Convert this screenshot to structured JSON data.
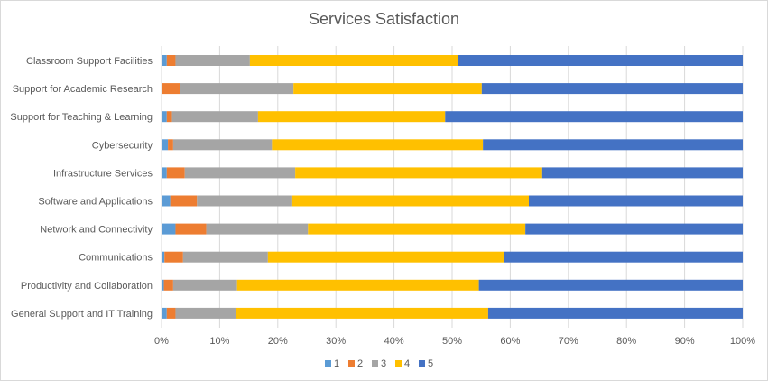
{
  "chart_data": {
    "type": "bar",
    "orientation": "horizontal",
    "stacked": "100%",
    "title": "Services Satisfaction",
    "categories": [
      "Classroom Support Facilities",
      "Support for Academic Research",
      "Support for Teaching & Learning",
      "Cybersecurity",
      "Infrastructure Services",
      "Software and Applications",
      "Network and Connectivity",
      "Communications",
      "Productivity and Collaboration",
      "General Support and IT Training"
    ],
    "series": [
      {
        "name": "1",
        "color": "#5b9bd5",
        "values": [
          0.9,
          0.0,
          0.9,
          1.1,
          0.9,
          1.5,
          2.4,
          0.5,
          0.4,
          0.9
        ]
      },
      {
        "name": "2",
        "color": "#ed7d31",
        "values": [
          1.5,
          3.2,
          0.9,
          0.9,
          3.1,
          4.6,
          5.3,
          3.2,
          1.6,
          1.5
        ]
      },
      {
        "name": "3",
        "color": "#a5a5a5",
        "values": [
          12.8,
          19.5,
          14.8,
          17.0,
          19.0,
          16.4,
          17.5,
          14.6,
          11.0,
          10.4
        ]
      },
      {
        "name": "4",
        "color": "#ffc000",
        "values": [
          35.8,
          32.4,
          32.2,
          36.3,
          42.5,
          40.7,
          37.4,
          40.7,
          41.6,
          43.4
        ]
      },
      {
        "name": "5",
        "color": "#4472c4",
        "values": [
          49.0,
          44.9,
          51.2,
          44.7,
          34.5,
          36.8,
          37.4,
          41.0,
          45.4,
          43.8
        ]
      }
    ],
    "x_ticks": [
      "0%",
      "10%",
      "20%",
      "30%",
      "40%",
      "50%",
      "60%",
      "70%",
      "80%",
      "90%",
      "100%"
    ],
    "xlim": [
      0,
      100
    ],
    "gridlines": true,
    "legend_position": "bottom"
  }
}
